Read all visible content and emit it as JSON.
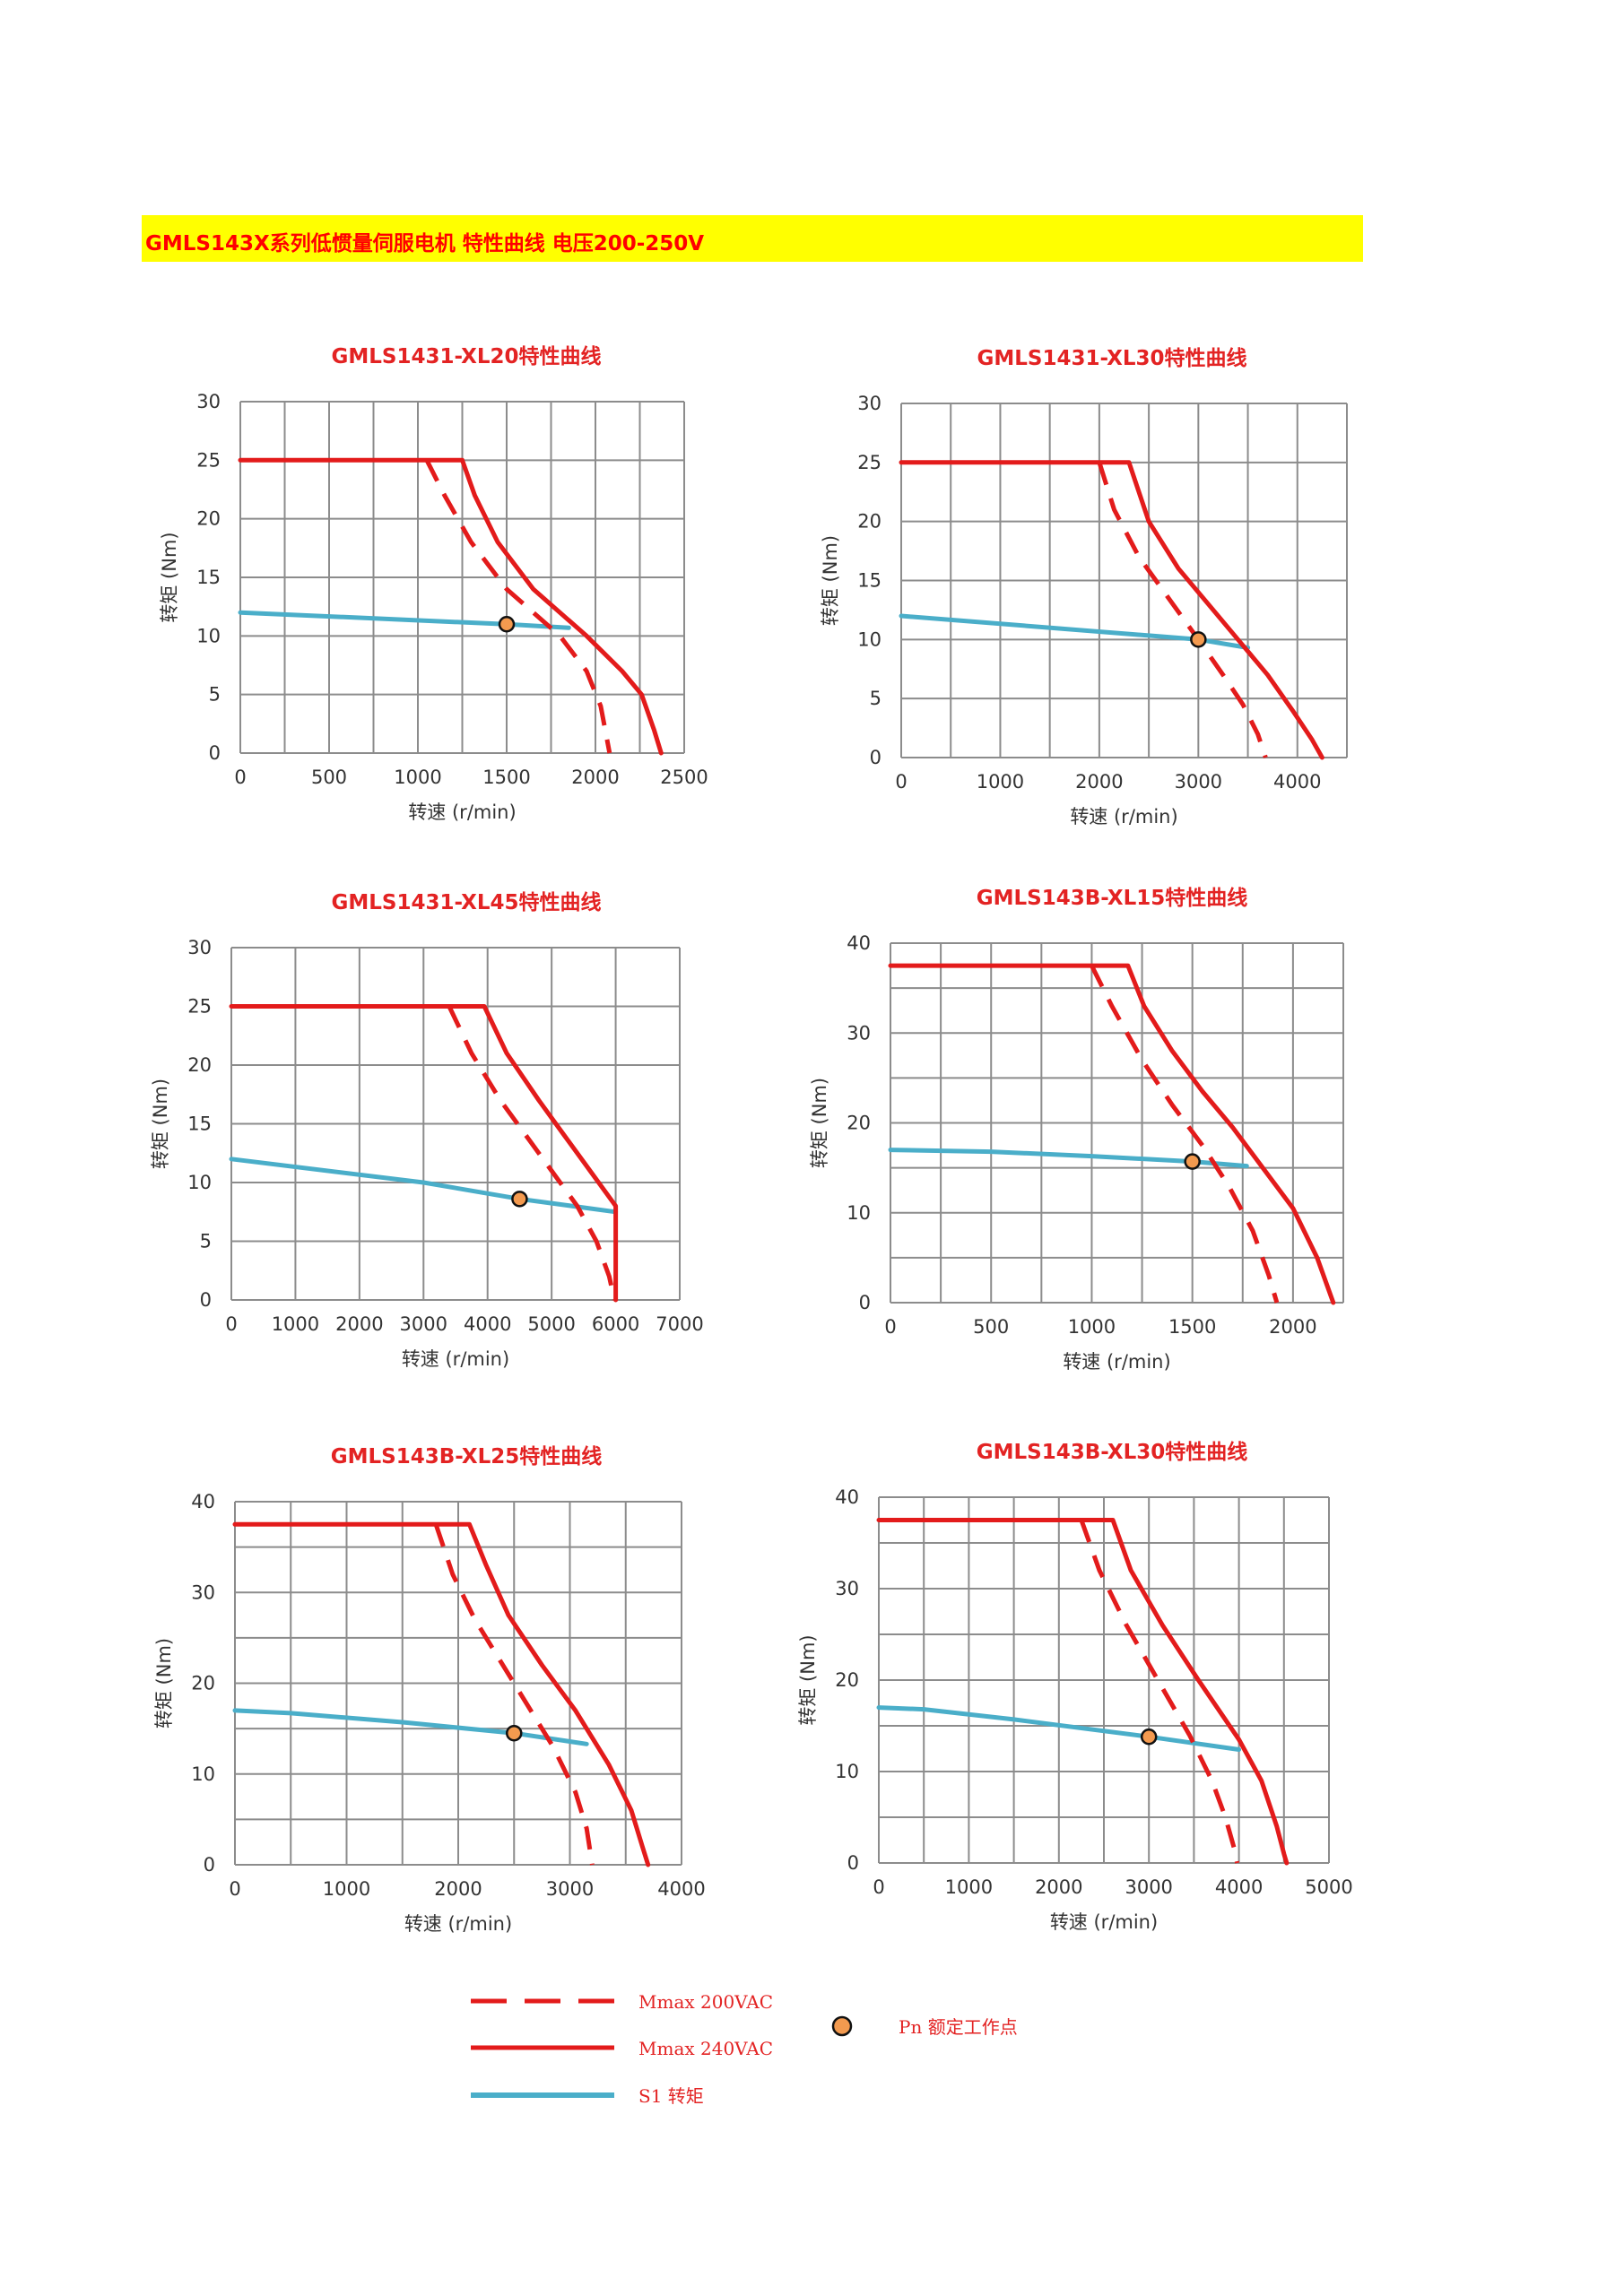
{
  "banner": {
    "title": "GMLS143X系列低惯量伺服电机 特性曲线 电压200-250V"
  },
  "colors": {
    "banner_bg": "#ffff00",
    "title_red": "#e32323",
    "mmax": "#e31b1b",
    "s1": "#4aaec9",
    "pn_fill": "#f39a4f",
    "grid": "#8c8c8c"
  },
  "legend": {
    "mmax_200": "Mmax 200VAC",
    "mmax_240": "Mmax 240VAC",
    "s1": "S1 转矩",
    "pn": "Pn 额定工作点"
  },
  "chart_data": [
    {
      "type": "line",
      "title": "GMLS1431-XL20特性曲线",
      "xlabel": "转速 (r/min)",
      "ylabel": "转矩 (Nm)",
      "xlim": [
        0,
        2500
      ],
      "ylim": [
        0,
        30
      ],
      "xticks": [
        0,
        500,
        1000,
        1500,
        2000,
        2500
      ],
      "yticks": [
        0,
        5,
        10,
        15,
        20,
        25,
        30
      ],
      "grid_x": 10,
      "grid_y": 6,
      "series": [
        {
          "name": "Mmax 240VAC",
          "style": "solid",
          "points": [
            [
              0,
              25
            ],
            [
              1250,
              25
            ],
            [
              1320,
              22
            ],
            [
              1450,
              18
            ],
            [
              1650,
              14
            ],
            [
              1800,
              12
            ],
            [
              1950,
              10
            ],
            [
              2150,
              7
            ],
            [
              2260,
              5
            ],
            [
              2330,
              2
            ],
            [
              2370,
              0
            ]
          ]
        },
        {
          "name": "Mmax 200VAC",
          "style": "dashed",
          "points": [
            [
              1050,
              25
            ],
            [
              1150,
              22
            ],
            [
              1300,
              18
            ],
            [
              1500,
              14
            ],
            [
              1650,
              12
            ],
            [
              1800,
              10
            ],
            [
              1950,
              7
            ],
            [
              2030,
              4
            ],
            [
              2080,
              0
            ]
          ]
        },
        {
          "name": "S1 转矩",
          "style": "solid",
          "points": [
            [
              0,
              12
            ],
            [
              1500,
              11
            ],
            [
              1850,
              10.7
            ]
          ]
        }
      ],
      "pn": [
        1500,
        11
      ]
    },
    {
      "type": "line",
      "title": "GMLS1431-XL30特性曲线",
      "xlabel": "转速 (r/min)",
      "ylabel": "转矩 (Nm)",
      "xlim": [
        0,
        4500
      ],
      "ylim": [
        0,
        30
      ],
      "xticks": [
        0,
        1000,
        2000,
        3000,
        4000
      ],
      "yticks": [
        0,
        5,
        10,
        15,
        20,
        25,
        30
      ],
      "grid_x": 9,
      "grid_y": 6,
      "series": [
        {
          "name": "Mmax 240VAC",
          "style": "solid",
          "points": [
            [
              0,
              25
            ],
            [
              2300,
              25
            ],
            [
              2500,
              20
            ],
            [
              2800,
              16
            ],
            [
              3100,
              13
            ],
            [
              3400,
              10
            ],
            [
              3700,
              7
            ],
            [
              3950,
              4
            ],
            [
              4150,
              1.5
            ],
            [
              4250,
              0
            ]
          ]
        },
        {
          "name": "Mmax 200VAC",
          "style": "dashed",
          "points": [
            [
              2000,
              25
            ],
            [
              2150,
              21
            ],
            [
              2400,
              17
            ],
            [
              2700,
              13.5
            ],
            [
              3000,
              10
            ],
            [
              3250,
              7
            ],
            [
              3450,
              4.5
            ],
            [
              3600,
              2
            ],
            [
              3680,
              0
            ]
          ]
        },
        {
          "name": "S1 转矩",
          "style": "solid",
          "points": [
            [
              0,
              12
            ],
            [
              3000,
              10
            ],
            [
              3500,
              9.3
            ]
          ]
        }
      ],
      "pn": [
        3000,
        10
      ]
    },
    {
      "type": "line",
      "title": "GMLS1431-XL45特性曲线",
      "xlabel": "转速 (r/min)",
      "ylabel": "转矩 (Nm)",
      "xlim": [
        0,
        7000
      ],
      "ylim": [
        0,
        30
      ],
      "xticks": [
        0,
        1000,
        2000,
        3000,
        4000,
        5000,
        6000,
        7000
      ],
      "yticks": [
        0,
        5,
        10,
        15,
        20,
        25,
        30
      ],
      "grid_x": 7,
      "grid_y": 6,
      "series": [
        {
          "name": "Mmax 240VAC",
          "style": "solid",
          "points": [
            [
              0,
              25
            ],
            [
              3950,
              25
            ],
            [
              4300,
              21
            ],
            [
              4800,
              17
            ],
            [
              5200,
              14
            ],
            [
              5600,
              11
            ],
            [
              6000,
              8
            ],
            [
              6000,
              0
            ]
          ]
        },
        {
          "name": "Mmax 200VAC",
          "style": "dashed",
          "points": [
            [
              3400,
              25
            ],
            [
              3750,
              21
            ],
            [
              4200,
              17
            ],
            [
              4600,
              14
            ],
            [
              5000,
              11
            ],
            [
              5400,
              8
            ],
            [
              5700,
              5
            ],
            [
              5900,
              2
            ],
            [
              5980,
              0
            ]
          ]
        },
        {
          "name": "S1 转矩",
          "style": "solid",
          "points": [
            [
              0,
              12
            ],
            [
              3000,
              10
            ],
            [
              4500,
              8.6
            ],
            [
              6000,
              7.5
            ]
          ]
        }
      ],
      "pn": [
        4500,
        8.6
      ]
    },
    {
      "type": "line",
      "title": "GMLS143B-XL15特性曲线",
      "xlabel": "转速 (r/min)",
      "ylabel": "转矩 (Nm)",
      "xlim": [
        0,
        2250
      ],
      "ylim": [
        0,
        40
      ],
      "xticks": [
        0,
        500,
        1000,
        1500,
        2000
      ],
      "yticks": [
        0,
        10,
        20,
        30,
        40
      ],
      "grid_x": 9,
      "grid_y": 8,
      "series": [
        {
          "name": "Mmax 240VAC",
          "style": "solid",
          "points": [
            [
              0,
              37.5
            ],
            [
              1180,
              37.5
            ],
            [
              1260,
              33
            ],
            [
              1400,
              28
            ],
            [
              1550,
              23.5
            ],
            [
              1700,
              19.5
            ],
            [
              1850,
              15
            ],
            [
              2000,
              10.5
            ],
            [
              2120,
              5
            ],
            [
              2200,
              0
            ]
          ]
        },
        {
          "name": "Mmax 200VAC",
          "style": "dashed",
          "points": [
            [
              1000,
              37.5
            ],
            [
              1100,
              33
            ],
            [
              1250,
              27
            ],
            [
              1400,
              22
            ],
            [
              1550,
              17.5
            ],
            [
              1680,
              13
            ],
            [
              1800,
              8
            ],
            [
              1880,
              3
            ],
            [
              1920,
              0
            ]
          ]
        },
        {
          "name": "S1 转矩",
          "style": "solid",
          "points": [
            [
              0,
              17
            ],
            [
              500,
              16.8
            ],
            [
              1000,
              16.3
            ],
            [
              1500,
              15.7
            ],
            [
              1770,
              15.2
            ]
          ]
        }
      ],
      "pn": [
        1500,
        15.7
      ]
    },
    {
      "type": "line",
      "title": "GMLS143B-XL25特性曲线",
      "xlabel": "转速 (r/min)",
      "ylabel": "转矩 (Nm)",
      "xlim": [
        0,
        4000
      ],
      "ylim": [
        0,
        40
      ],
      "xticks": [
        0,
        1000,
        2000,
        3000,
        4000
      ],
      "yticks": [
        0,
        10,
        20,
        30,
        40
      ],
      "grid_x": 8,
      "grid_y": 8,
      "series": [
        {
          "name": "Mmax 240VAC",
          "style": "solid",
          "points": [
            [
              0,
              37.5
            ],
            [
              2100,
              37.5
            ],
            [
              2250,
              33
            ],
            [
              2450,
              27.5
            ],
            [
              2750,
              22
            ],
            [
              3050,
              17
            ],
            [
              3350,
              11
            ],
            [
              3550,
              6
            ],
            [
              3650,
              2
            ],
            [
              3700,
              0
            ]
          ]
        },
        {
          "name": "Mmax 200VAC",
          "style": "dashed",
          "points": [
            [
              1800,
              37.5
            ],
            [
              1950,
              32
            ],
            [
              2150,
              27
            ],
            [
              2400,
              22
            ],
            [
              2650,
              17
            ],
            [
              2850,
              13
            ],
            [
              3050,
              8
            ],
            [
              3150,
              4
            ],
            [
              3200,
              0
            ]
          ]
        },
        {
          "name": "S1 转矩",
          "style": "solid",
          "points": [
            [
              0,
              17
            ],
            [
              500,
              16.7
            ],
            [
              1500,
              15.7
            ],
            [
              2500,
              14.5
            ],
            [
              3150,
              13.3
            ]
          ]
        }
      ],
      "pn": [
        2500,
        14.5
      ]
    },
    {
      "type": "line",
      "title": "GMLS143B-XL30特性曲线",
      "xlabel": "转速 (r/min)",
      "ylabel": "转矩 (Nm)",
      "xlim": [
        0,
        5000
      ],
      "ylim": [
        0,
        40
      ],
      "xticks": [
        0,
        1000,
        2000,
        3000,
        4000,
        5000
      ],
      "yticks": [
        0,
        10,
        20,
        30,
        40
      ],
      "grid_x": 10,
      "grid_y": 8,
      "series": [
        {
          "name": "Mmax 240VAC",
          "style": "solid",
          "points": [
            [
              0,
              37.5
            ],
            [
              2600,
              37.5
            ],
            [
              2800,
              32
            ],
            [
              3150,
              26
            ],
            [
              3550,
              20
            ],
            [
              4000,
              13.5
            ],
            [
              4250,
              9
            ],
            [
              4420,
              4
            ],
            [
              4500,
              1
            ],
            [
              4530,
              0
            ]
          ]
        },
        {
          "name": "Mmax 200VAC",
          "style": "dashed",
          "points": [
            [
              2250,
              37.5
            ],
            [
              2450,
              32
            ],
            [
              2750,
              26
            ],
            [
              3100,
              20
            ],
            [
              3450,
              14
            ],
            [
              3700,
              9
            ],
            [
              3850,
              5
            ],
            [
              3950,
              1.5
            ],
            [
              3980,
              0
            ]
          ]
        },
        {
          "name": "S1 转矩",
          "style": "solid",
          "points": [
            [
              0,
              17
            ],
            [
              500,
              16.8
            ],
            [
              1500,
              15.7
            ],
            [
              3000,
              13.8
            ],
            [
              4000,
              12.4
            ]
          ]
        }
      ],
      "pn": [
        3000,
        13.8
      ]
    }
  ]
}
